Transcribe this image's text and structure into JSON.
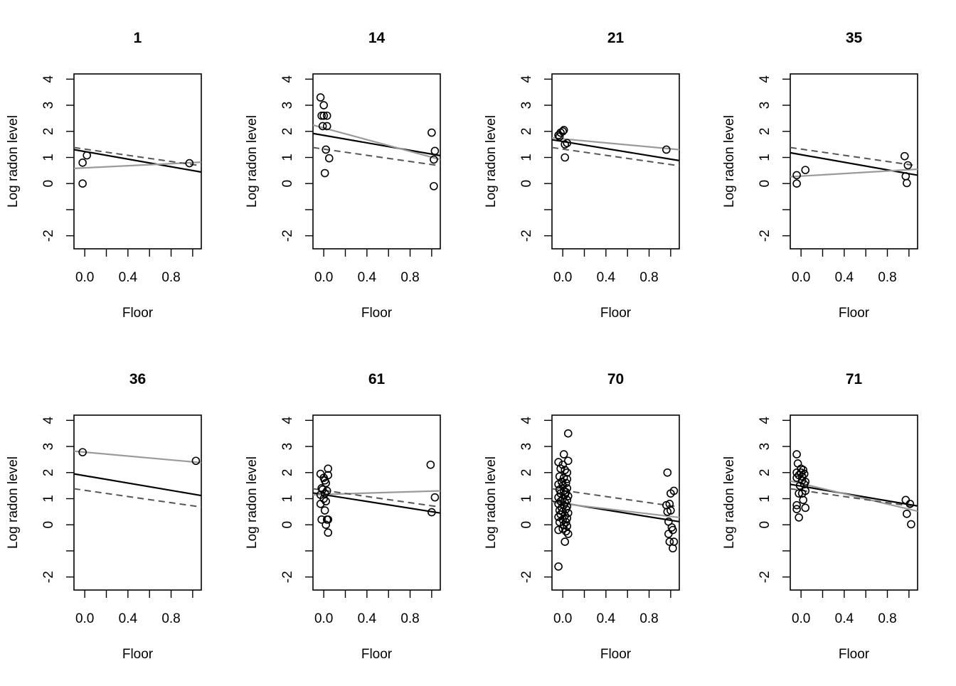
{
  "chart_data": [
    {
      "type": "scatter",
      "title": "1",
      "xlabel": "Floor",
      "ylabel": "Log radon level",
      "xlim": [
        -0.1,
        1.08
      ],
      "ylim": [
        -2.5,
        4.2
      ],
      "xticks": [
        "0.0",
        "0.4",
        "0.8"
      ],
      "yticks": [
        "-2",
        "0",
        "1",
        "2",
        "3",
        "4"
      ],
      "points": [
        [
          -0.02,
          0.8
        ],
        [
          0.02,
          1.08
        ],
        [
          -0.02,
          0.0
        ],
        [
          0.97,
          0.78
        ]
      ],
      "lines": [
        {
          "style": "black",
          "y0": 1.3,
          "y1": 0.44
        },
        {
          "style": "gray",
          "y0": 0.58,
          "y1": 0.82
        },
        {
          "style": "dashed",
          "y0": 1.38,
          "y1": 0.68
        }
      ]
    },
    {
      "type": "scatter",
      "title": "14",
      "xlabel": "Floor",
      "ylabel": "Log radon level",
      "xlim": [
        -0.1,
        1.08
      ],
      "ylim": [
        -2.5,
        4.2
      ],
      "xticks": [
        "0.0",
        "0.4",
        "0.8"
      ],
      "yticks": [
        "-2",
        "0",
        "1",
        "2",
        "3",
        "4"
      ],
      "points": [
        [
          -0.03,
          3.3
        ],
        [
          0.0,
          3.0
        ],
        [
          -0.02,
          2.6
        ],
        [
          0.0,
          2.6
        ],
        [
          0.03,
          2.6
        ],
        [
          -0.01,
          2.2
        ],
        [
          0.03,
          2.2
        ],
        [
          0.02,
          1.3
        ],
        [
          0.05,
          0.97
        ],
        [
          0.01,
          0.4
        ],
        [
          1.0,
          1.95
        ],
        [
          1.03,
          1.25
        ],
        [
          1.02,
          0.92
        ],
        [
          1.02,
          -0.1
        ]
      ],
      "lines": [
        {
          "style": "black",
          "y0": 1.92,
          "y1": 1.07
        },
        {
          "style": "gray",
          "y0": 2.24,
          "y1": 0.92
        },
        {
          "style": "dashed",
          "y0": 1.38,
          "y1": 0.68
        }
      ]
    },
    {
      "type": "scatter",
      "title": "21",
      "xlabel": "Floor",
      "ylabel": "Log radon level",
      "xlim": [
        -0.1,
        1.08
      ],
      "ylim": [
        -2.5,
        4.2
      ],
      "xticks": [
        "0.0",
        "0.4",
        "0.8"
      ],
      "yticks": [
        "-2",
        "0",
        "1",
        "2",
        "3",
        "4"
      ],
      "points": [
        [
          -0.04,
          1.85
        ],
        [
          -0.02,
          1.95
        ],
        [
          0.0,
          2.0
        ],
        [
          0.01,
          2.05
        ],
        [
          -0.03,
          1.8
        ],
        [
          0.02,
          1.5
        ],
        [
          0.04,
          1.55
        ],
        [
          0.02,
          1.0
        ],
        [
          0.96,
          1.3
        ]
      ],
      "lines": [
        {
          "style": "black",
          "y0": 1.68,
          "y1": 0.88
        },
        {
          "style": "gray",
          "y0": 1.75,
          "y1": 1.3
        },
        {
          "style": "dashed",
          "y0": 1.38,
          "y1": 0.68
        }
      ]
    },
    {
      "type": "scatter",
      "title": "35",
      "xlabel": "Floor",
      "ylabel": "Log radon level",
      "xlim": [
        -0.1,
        1.08
      ],
      "ylim": [
        -2.5,
        4.2
      ],
      "xticks": [
        "0.0",
        "0.4",
        "0.8"
      ],
      "yticks": [
        "-2",
        "0",
        "1",
        "2",
        "3",
        "4"
      ],
      "points": [
        [
          -0.04,
          0.32
        ],
        [
          -0.04,
          0.0
        ],
        [
          0.04,
          0.52
        ],
        [
          0.96,
          1.05
        ],
        [
          0.99,
          0.7
        ],
        [
          0.97,
          0.28
        ],
        [
          0.98,
          0.02
        ]
      ],
      "lines": [
        {
          "style": "black",
          "y0": 1.18,
          "y1": 0.32
        },
        {
          "style": "gray",
          "y0": 0.26,
          "y1": 0.55
        },
        {
          "style": "dashed",
          "y0": 1.38,
          "y1": 0.68
        }
      ]
    },
    {
      "type": "scatter",
      "title": "36",
      "xlabel": "Floor",
      "ylabel": "Log radon level",
      "xlim": [
        -0.1,
        1.08
      ],
      "ylim": [
        -2.5,
        4.2
      ],
      "xticks": [
        "0.0",
        "0.4",
        "0.8"
      ],
      "yticks": [
        "-2",
        "0",
        "1",
        "2",
        "3",
        "4"
      ],
      "points": [
        [
          -0.02,
          2.78
        ],
        [
          1.03,
          2.45
        ]
      ],
      "lines": [
        {
          "style": "black",
          "y0": 1.95,
          "y1": 1.12
        },
        {
          "style": "gray",
          "y0": 2.82,
          "y1": 2.38
        },
        {
          "style": "dashed",
          "y0": 1.38,
          "y1": 0.68
        }
      ]
    },
    {
      "type": "scatter",
      "title": "61",
      "xlabel": "Floor",
      "ylabel": "Log radon level",
      "xlim": [
        -0.1,
        1.08
      ],
      "ylim": [
        -2.5,
        4.2
      ],
      "xticks": [
        "0.0",
        "0.4",
        "0.8"
      ],
      "yticks": [
        "-2",
        "0",
        "1",
        "2",
        "3",
        "4"
      ],
      "points": [
        [
          -0.03,
          1.95
        ],
        [
          0.04,
          2.15
        ],
        [
          0.0,
          1.8
        ],
        [
          0.01,
          1.7
        ],
        [
          0.04,
          1.9
        ],
        [
          -0.02,
          1.4
        ],
        [
          0.02,
          1.6
        ],
        [
          0.03,
          1.3
        ],
        [
          -0.03,
          1.15
        ],
        [
          0.0,
          1.0
        ],
        [
          0.02,
          0.9
        ],
        [
          -0.03,
          0.8
        ],
        [
          0.01,
          0.55
        ],
        [
          -0.02,
          0.2
        ],
        [
          0.03,
          0.2
        ],
        [
          0.04,
          0.2
        ],
        [
          0.02,
          0.0
        ],
        [
          0.04,
          -0.3
        ],
        [
          0.01,
          1.2
        ],
        [
          -0.01,
          1.35
        ],
        [
          0.99,
          2.3
        ],
        [
          1.03,
          1.05
        ],
        [
          1.0,
          0.48
        ]
      ],
      "lines": [
        {
          "style": "black",
          "y0": 1.22,
          "y1": 0.45
        },
        {
          "style": "gray",
          "y0": 1.15,
          "y1": 1.3
        },
        {
          "style": "dashed",
          "y0": 1.38,
          "y1": 0.68
        }
      ]
    },
    {
      "type": "scatter",
      "title": "70",
      "xlabel": "Floor",
      "ylabel": "Log radon level",
      "xlim": [
        -0.1,
        1.08
      ],
      "ylim": [
        -2.5,
        4.2
      ],
      "xticks": [
        "0.0",
        "0.4",
        "0.8"
      ],
      "yticks": [
        "-2",
        "0",
        "1",
        "2",
        "3",
        "4"
      ],
      "points": [
        [
          0.05,
          3.5
        ],
        [
          0.01,
          2.7
        ],
        [
          -0.04,
          2.4
        ],
        [
          0.05,
          2.45
        ],
        [
          0.0,
          2.3
        ],
        [
          -0.02,
          2.15
        ],
        [
          0.02,
          2.1
        ],
        [
          0.04,
          2.0
        ],
        [
          -0.03,
          1.85
        ],
        [
          0.01,
          1.8
        ],
        [
          0.04,
          1.75
        ],
        [
          -0.01,
          1.65
        ],
        [
          0.03,
          1.6
        ],
        [
          -0.04,
          1.55
        ],
        [
          0.0,
          1.5
        ],
        [
          0.04,
          1.4
        ],
        [
          -0.03,
          1.35
        ],
        [
          0.01,
          1.3
        ],
        [
          0.03,
          1.25
        ],
        [
          -0.02,
          1.2
        ],
        [
          0.02,
          1.15
        ],
        [
          0.05,
          1.1
        ],
        [
          -0.04,
          1.05
        ],
        [
          0.0,
          1.0
        ],
        [
          0.04,
          0.95
        ],
        [
          -0.02,
          0.9
        ],
        [
          0.02,
          0.85
        ],
        [
          -0.04,
          0.8
        ],
        [
          0.01,
          0.75
        ],
        [
          0.04,
          0.7
        ],
        [
          -0.01,
          0.65
        ],
        [
          0.03,
          0.6
        ],
        [
          -0.03,
          0.55
        ],
        [
          0.0,
          0.5
        ],
        [
          0.05,
          0.45
        ],
        [
          -0.02,
          0.4
        ],
        [
          0.02,
          0.35
        ],
        [
          -0.04,
          0.3
        ],
        [
          0.04,
          0.25
        ],
        [
          0.0,
          0.2
        ],
        [
          -0.03,
          0.1
        ],
        [
          0.03,
          0.1
        ],
        [
          0.01,
          0.0
        ],
        [
          0.04,
          -0.05
        ],
        [
          -0.04,
          -0.2
        ],
        [
          0.0,
          -0.15
        ],
        [
          0.03,
          -0.25
        ],
        [
          0.05,
          -0.35
        ],
        [
          0.02,
          -0.65
        ],
        [
          -0.04,
          -1.6
        ],
        [
          0.97,
          2.0
        ],
        [
          1.03,
          1.3
        ],
        [
          1.0,
          1.2
        ],
        [
          0.96,
          0.75
        ],
        [
          0.99,
          0.8
        ],
        [
          0.97,
          0.5
        ],
        [
          1.0,
          0.55
        ],
        [
          0.98,
          0.12
        ],
        [
          1.01,
          -0.1
        ],
        [
          0.98,
          -0.35
        ],
        [
          1.02,
          -0.2
        ],
        [
          0.99,
          -0.65
        ],
        [
          1.03,
          -0.65
        ],
        [
          1.02,
          -0.9
        ]
      ],
      "lines": [
        {
          "style": "black",
          "y0": 0.9,
          "y1": 0.12
        },
        {
          "style": "gray",
          "y0": 0.86,
          "y1": 0.28
        },
        {
          "style": "dashed",
          "y0": 1.38,
          "y1": 0.68
        }
      ]
    },
    {
      "type": "scatter",
      "title": "71",
      "xlabel": "Floor",
      "ylabel": "Log radon level",
      "xlim": [
        -0.1,
        1.08
      ],
      "ylim": [
        -2.5,
        4.2
      ],
      "xticks": [
        "0.0",
        "0.4",
        "0.8"
      ],
      "yticks": [
        "-2",
        "0",
        "1",
        "2",
        "3",
        "4"
      ],
      "points": [
        [
          -0.04,
          2.7
        ],
        [
          -0.03,
          2.35
        ],
        [
          0.0,
          2.15
        ],
        [
          0.02,
          2.1
        ],
        [
          -0.04,
          2.0
        ],
        [
          0.0,
          2.0
        ],
        [
          0.03,
          1.95
        ],
        [
          -0.02,
          1.9
        ],
        [
          0.01,
          1.85
        ],
        [
          -0.04,
          1.8
        ],
        [
          0.01,
          1.7
        ],
        [
          0.04,
          1.65
        ],
        [
          0.03,
          1.55
        ],
        [
          -0.01,
          1.5
        ],
        [
          0.04,
          1.3
        ],
        [
          -0.02,
          1.2
        ],
        [
          0.01,
          1.2
        ],
        [
          0.02,
          0.95
        ],
        [
          -0.04,
          0.75
        ],
        [
          -0.04,
          0.6
        ],
        [
          0.04,
          0.65
        ],
        [
          -0.02,
          0.28
        ],
        [
          0.97,
          0.95
        ],
        [
          1.01,
          0.8
        ],
        [
          0.98,
          0.42
        ],
        [
          1.02,
          0.02
        ]
      ],
      "lines": [
        {
          "style": "black",
          "y0": 1.55,
          "y1": 0.72
        },
        {
          "style": "gray",
          "y0": 1.68,
          "y1": 0.52
        },
        {
          "style": "dashed",
          "y0": 1.38,
          "y1": 0.68
        }
      ]
    }
  ]
}
